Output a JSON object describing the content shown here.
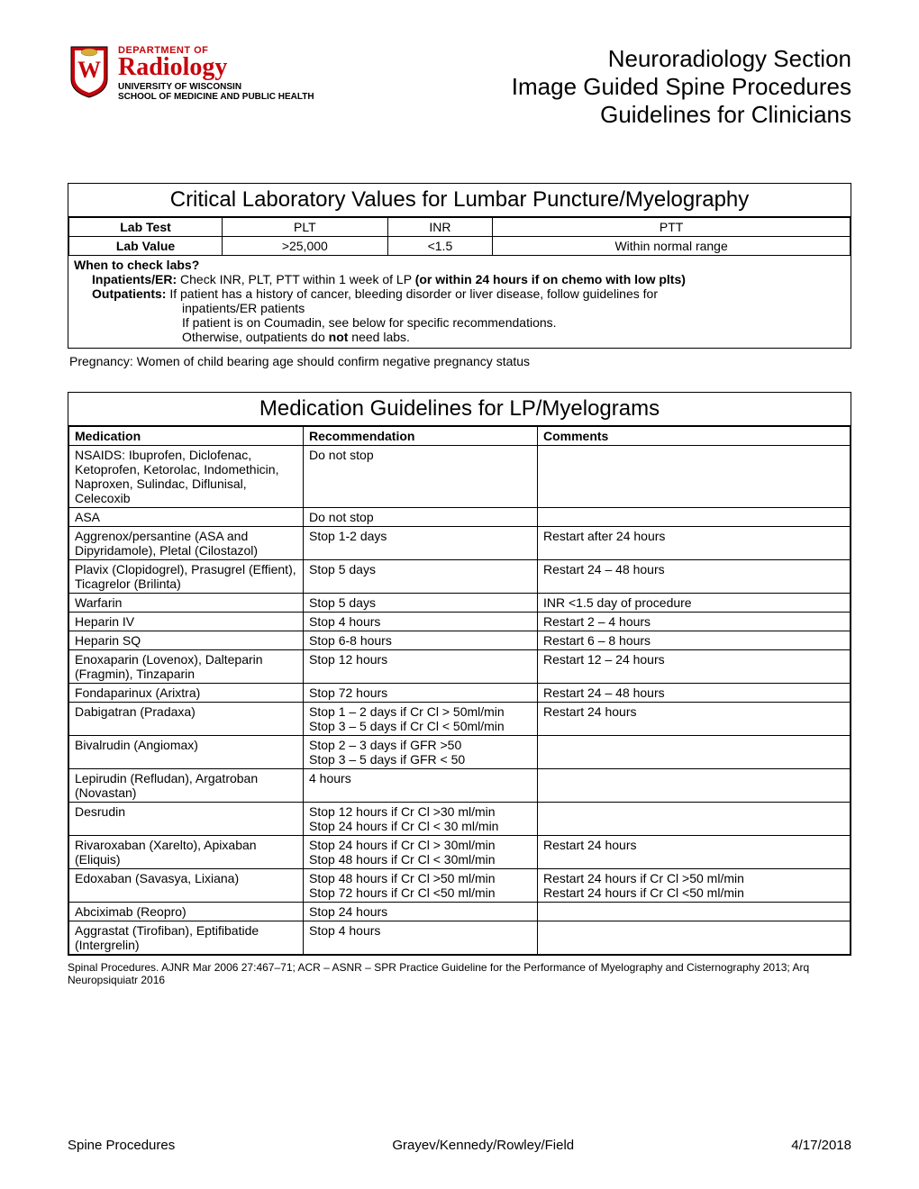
{
  "header": {
    "dept_of": "DEPARTMENT OF",
    "radiology": "Radiology",
    "university": "UNIVERSITY OF WISCONSIN",
    "school": "SCHOOL OF MEDICINE AND PUBLIC HEALTH",
    "title_line1": "Neuroradiology Section",
    "title_line2": "Image Guided Spine Procedures",
    "title_line3": "Guidelines for Clinicians"
  },
  "lab_section": {
    "title": "Critical Laboratory Values for Lumbar Puncture/Myelography",
    "row1_label": "Lab Test",
    "row2_label": "Lab Value",
    "plt": "PLT",
    "inr": "INR",
    "ptt": "PTT",
    "plt_val": ">25,000",
    "inr_val": "<1.5",
    "ptt_val": "Within normal range",
    "when_title": "When to check labs?",
    "inpatients_label": "Inpatients/ER:",
    "inpatients_text": " Check INR, PLT, PTT within 1 week of LP ",
    "inpatients_bold": "(or within 24 hours if on chemo with low plts)",
    "outpatients_label": "Outpatients:",
    "outpatients_text": " If patient has a history of cancer, bleeding disorder or liver disease, follow guidelines for",
    "outpatients_text2": "inpatients/ER patients",
    "coumadin_text": "If patient is on Coumadin, see below for specific recommendations.",
    "otherwise_text": "Otherwise, outpatients do ",
    "not_bold": "not",
    "otherwise_text2": " need labs.",
    "pregnancy": "Pregnancy: Women of child bearing age should confirm negative pregnancy status"
  },
  "med_section": {
    "title": "Medication Guidelines for LP/Myelograms",
    "col_medication": "Medication",
    "col_recommendation": "Recommendation",
    "col_comments": "Comments",
    "rows": [
      {
        "med": "NSAIDS:  Ibuprofen, Diclofenac, Ketoprofen, Ketorolac, Indomethicin, Naproxen, Sulindac, Diflunisal, Celecoxib",
        "rec": "Do not stop",
        "com": ""
      },
      {
        "med": "ASA",
        "rec": "Do not stop",
        "com": ""
      },
      {
        "med": "Aggrenox/persantine (ASA and Dipyridamole), Pletal (Cilostazol)",
        "rec": "Stop 1-2 days",
        "com": "Restart after 24 hours"
      },
      {
        "med": "Plavix (Clopidogrel), Prasugrel (Effient), Ticagrelor (Brilinta)",
        "rec": "Stop 5 days",
        "com": "Restart 24 – 48 hours"
      },
      {
        "med": "Warfarin",
        "rec": "Stop 5 days",
        "com": "INR <1.5 day of procedure"
      },
      {
        "med": "Heparin IV",
        "rec": "Stop 4 hours",
        "com": "Restart 2 – 4 hours"
      },
      {
        "med": "Heparin SQ",
        "rec": "Stop 6-8 hours",
        "com": "Restart 6 – 8 hours"
      },
      {
        "med": "Enoxaparin (Lovenox), Dalteparin (Fragmin), Tinzaparin",
        "rec": "Stop 12 hours",
        "com": "Restart 12 – 24 hours"
      },
      {
        "med": "Fondaparinux (Arixtra)",
        "rec": "Stop 72 hours",
        "com": "Restart 24 – 48 hours"
      },
      {
        "med": "Dabigatran (Pradaxa)",
        "rec": "Stop 1 – 2  days if Cr Cl > 50ml/min\nStop 3 – 5 days  if Cr Cl < 50ml/min",
        "com": "Restart 24 hours"
      },
      {
        "med": "Bivalrudin (Angiomax)",
        "rec": "Stop 2 – 3 days if GFR >50\nStop 3 – 5 days if GFR < 50",
        "com": ""
      },
      {
        "med": "Lepirudin (Refludan), Argatroban (Novastan)",
        "rec": "4 hours",
        "com": ""
      },
      {
        "med": "Desrudin",
        "rec": "Stop 12 hours if Cr Cl >30 ml/min\nStop 24 hours if Cr Cl < 30 ml/min",
        "com": ""
      },
      {
        "med": "Rivaroxaban (Xarelto), Apixaban (Eliquis)",
        "rec": "Stop 24 hours if Cr Cl > 30ml/min\nStop 48 hours if Cr Cl < 30ml/min",
        "com": "Restart 24 hours"
      },
      {
        "med": "Edoxaban (Savasya, Lixiana)",
        "rec": "Stop 48 hours if Cr Cl >50 ml/min\nStop 72 hours if Cr Cl <50 ml/min",
        "com": "Restart 24 hours if Cr Cl >50 ml/min\nRestart 24 hours if Cr Cl <50 ml/min"
      },
      {
        "med": "Abciximab (Reopro)",
        "rec": "Stop 24 hours",
        "com": ""
      },
      {
        "med": "Aggrastat (Tirofiban), Eptifibatide (Intergrelin)",
        "rec": "Stop 4 hours",
        "com": ""
      }
    ]
  },
  "references": "Spinal Procedures. AJNR Mar 2006 27:467–71; ACR – ASNR – SPR Practice Guideline for the Performance of Myelography and Cisternography 2013; Arq Neuropsiquiatr 2016",
  "footer": {
    "left": "Spine Procedures",
    "center": "Grayev/Kennedy/Rowley/Field",
    "right": "4/17/2018"
  },
  "colors": {
    "red": "#c5050c",
    "black": "#000000",
    "white": "#ffffff"
  }
}
